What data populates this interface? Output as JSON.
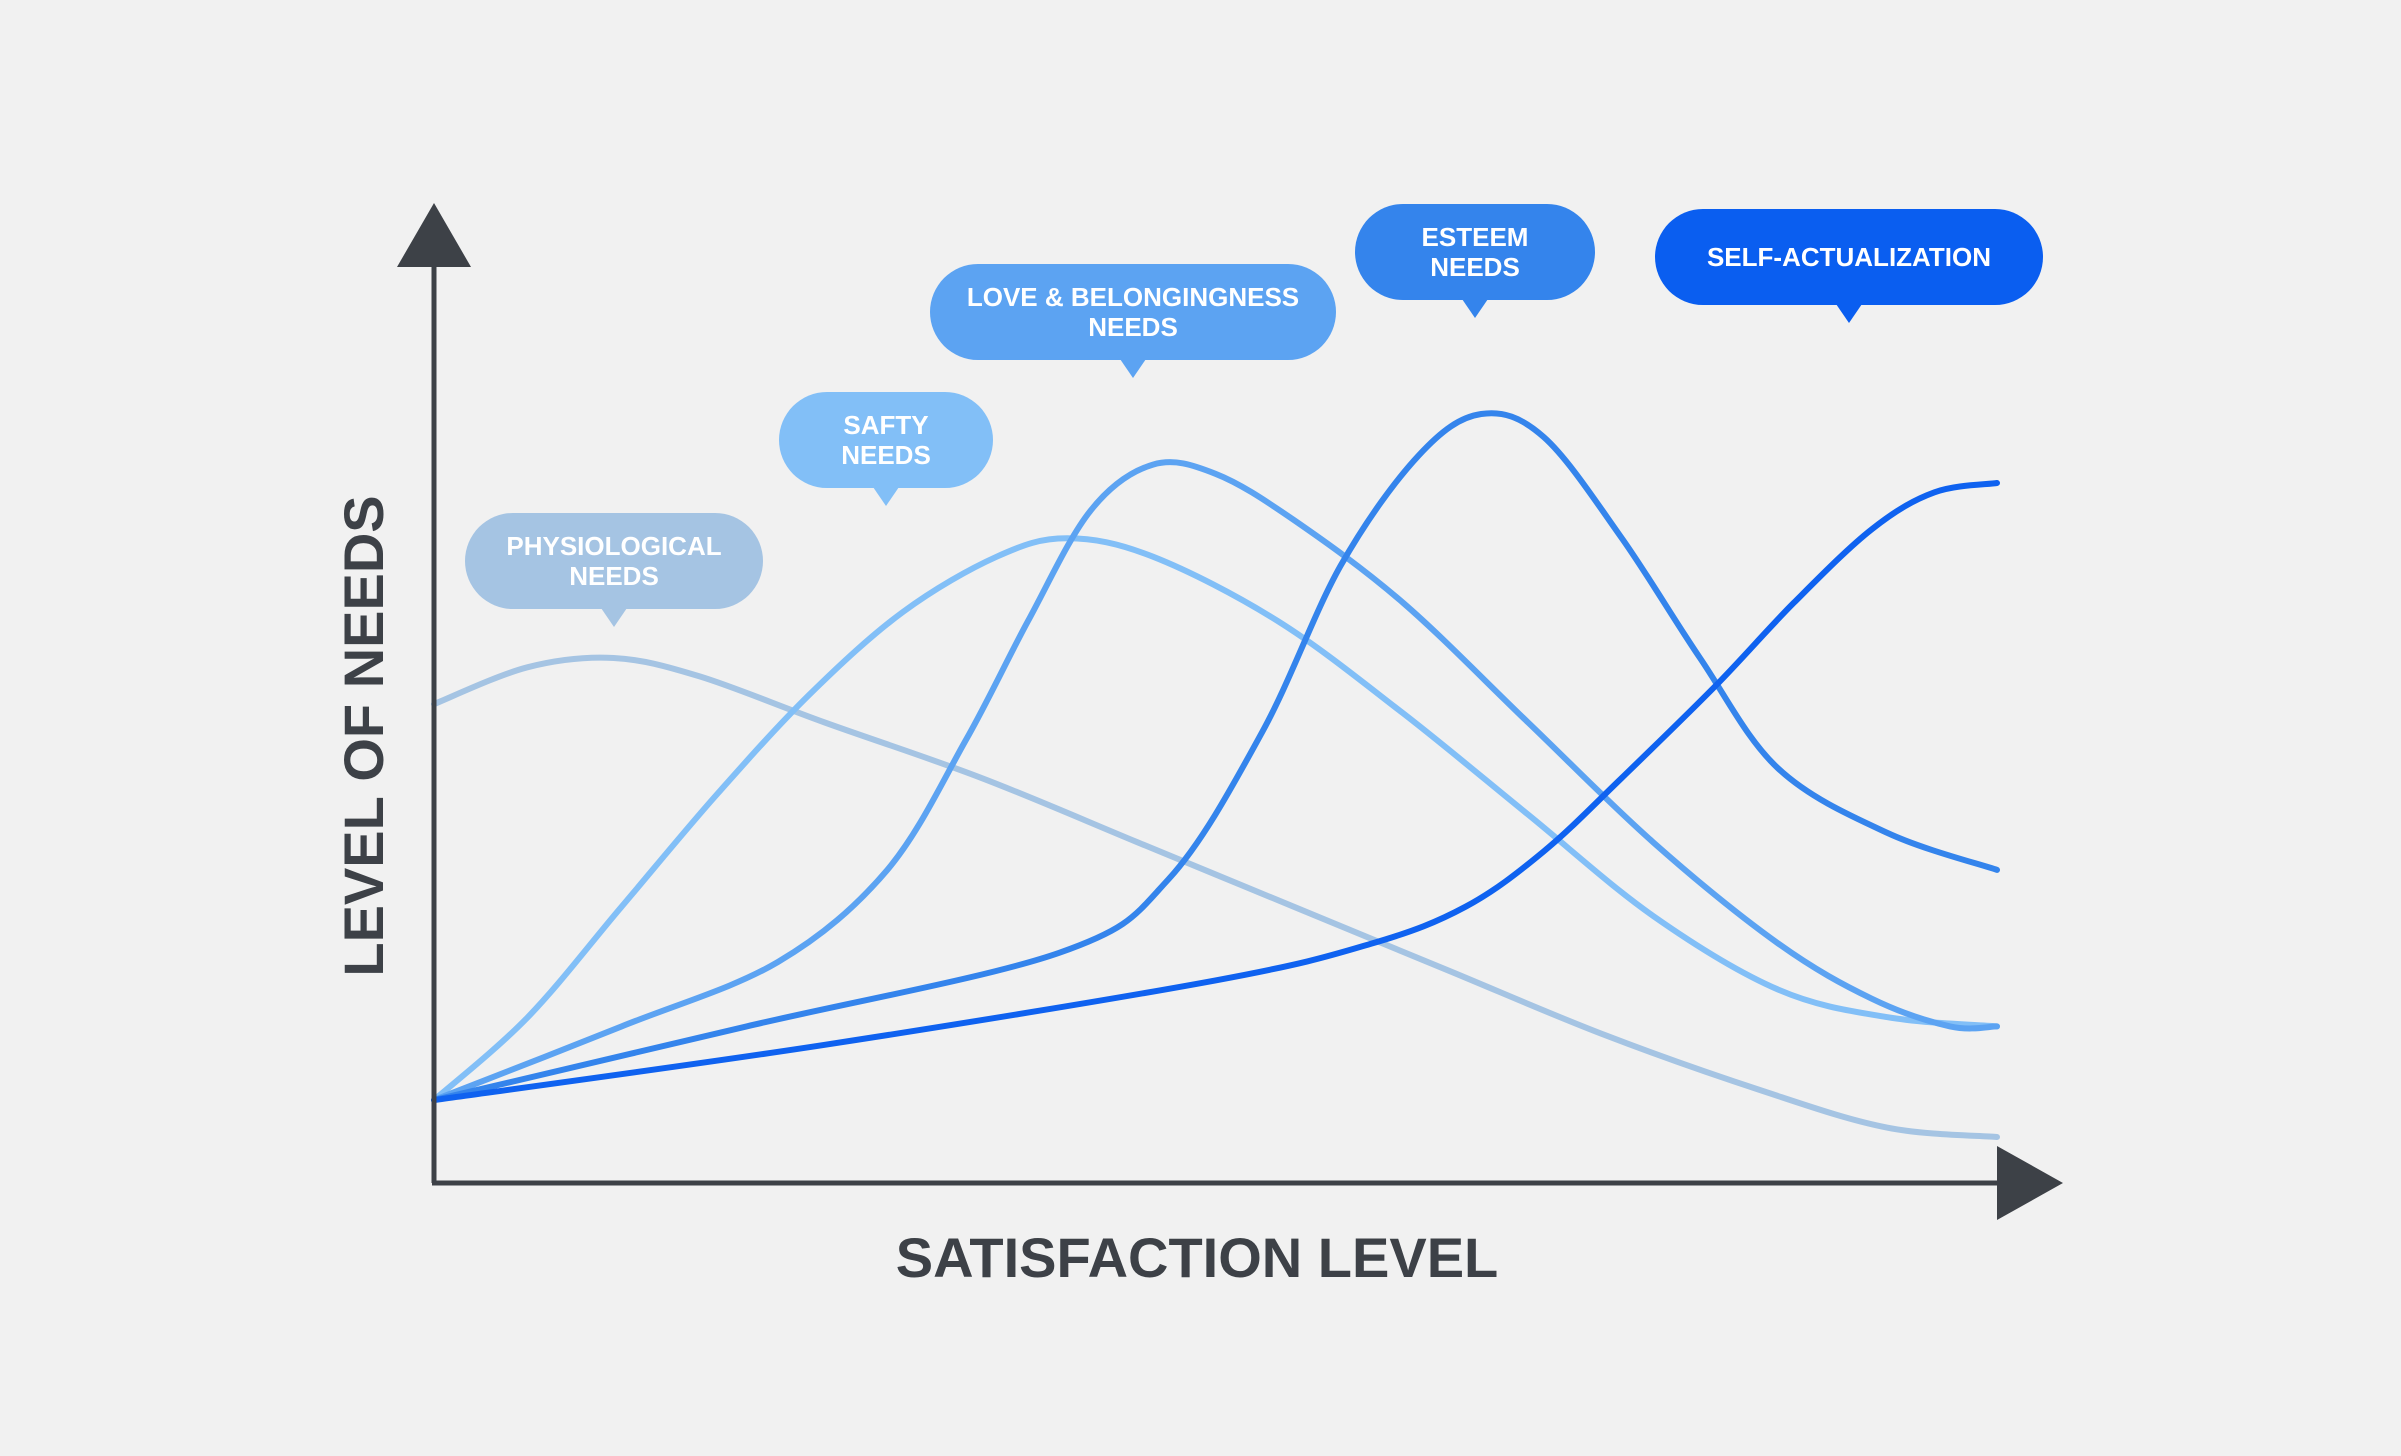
{
  "chart_data": {
    "type": "line",
    "title": "",
    "xlabel": "SATISFACTION LEVEL",
    "ylabel": "LEVEL OF NEEDS",
    "xlim": [
      0,
      100
    ],
    "ylim": [
      0,
      100
    ],
    "grid": false,
    "legend": "callout labels above each curve peak",
    "axis_color": "#3d4147",
    "series": [
      {
        "name": "PHYSIOLOGICAL NEEDS",
        "label_lines": [
          "PHYSIOLOGICAL",
          "NEEDS"
        ],
        "color": "#a5c4e3",
        "bubble_color": "#a5c4e3",
        "points": [
          [
            0,
            52
          ],
          [
            6,
            56
          ],
          [
            11.5,
            57
          ],
          [
            17,
            55
          ],
          [
            25,
            50
          ],
          [
            35,
            44
          ],
          [
            45,
            37
          ],
          [
            55,
            30
          ],
          [
            65,
            23
          ],
          [
            75,
            16
          ],
          [
            85,
            10
          ],
          [
            93,
            6
          ],
          [
            100,
            5
          ]
        ]
      },
      {
        "name": "SAFTY NEEDS",
        "label_lines": [
          "SAFTY",
          "NEEDS"
        ],
        "color": "#82bff7",
        "bubble_color": "#82bff7",
        "points": [
          [
            0,
            9
          ],
          [
            6,
            18
          ],
          [
            12,
            30
          ],
          [
            18,
            42
          ],
          [
            24,
            53
          ],
          [
            30,
            62
          ],
          [
            36,
            68
          ],
          [
            40.5,
            70
          ],
          [
            46,
            68
          ],
          [
            54,
            61
          ],
          [
            62,
            51
          ],
          [
            70,
            40
          ],
          [
            78,
            29
          ],
          [
            86,
            21
          ],
          [
            93,
            18
          ],
          [
            100,
            17
          ]
        ]
      },
      {
        "name": "LOVE & BELONGINGNESS NEEDS",
        "label_lines": [
          "LOVE & BELONGINGNESS",
          "NEEDS"
        ],
        "color": "#5ca3f2",
        "bubble_color": "#5ca3f2",
        "points": [
          [
            0,
            9
          ],
          [
            12,
            17
          ],
          [
            22,
            24
          ],
          [
            29,
            34
          ],
          [
            34,
            48
          ],
          [
            38,
            61
          ],
          [
            42,
            73
          ],
          [
            46,
            78
          ],
          [
            50,
            77
          ],
          [
            55,
            72
          ],
          [
            62,
            63
          ],
          [
            70,
            50
          ],
          [
            78,
            37
          ],
          [
            86,
            26
          ],
          [
            92,
            20
          ],
          [
            97,
            17
          ],
          [
            100,
            17
          ]
        ]
      },
      {
        "name": "ESTEEM NEEDS",
        "label_lines": [
          "ESTEEM",
          "NEEDS"
        ],
        "color": "#3484ec",
        "bubble_color": "#3484ec",
        "points": [
          [
            0,
            9
          ],
          [
            20,
            17
          ],
          [
            40,
            25
          ],
          [
            47,
            33
          ],
          [
            53,
            49
          ],
          [
            58,
            67
          ],
          [
            63,
            79
          ],
          [
            67,
            83.5
          ],
          [
            71,
            81
          ],
          [
            76,
            70
          ],
          [
            81,
            57
          ],
          [
            86,
            45
          ],
          [
            93,
            38
          ],
          [
            100,
            34
          ]
        ]
      },
      {
        "name": "SELF-ACTUALIZATION",
        "label_lines": [
          "SELF-ACTUALIZATION"
        ],
        "color": "#0f62f0",
        "bubble_color": "#0a5ef0",
        "points": [
          [
            0,
            9
          ],
          [
            25,
            15
          ],
          [
            50,
            22
          ],
          [
            60,
            26
          ],
          [
            66,
            30
          ],
          [
            71,
            36
          ],
          [
            76,
            44
          ],
          [
            82,
            54
          ],
          [
            87,
            63
          ],
          [
            92,
            71
          ],
          [
            96,
            75
          ],
          [
            100,
            76
          ]
        ]
      }
    ]
  }
}
